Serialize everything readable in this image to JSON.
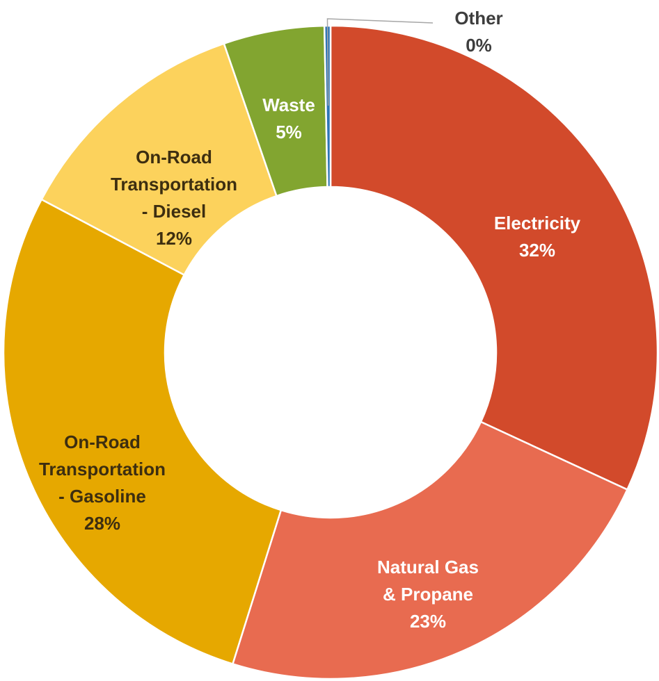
{
  "chart_data": {
    "type": "pie",
    "variant": "donut",
    "title": "",
    "legend": "none",
    "slices": [
      {
        "name": "Electricity",
        "label_lines": [
          "Electricity"
        ],
        "value": 32,
        "value_label": "32%",
        "color": "#d24a2b",
        "label_color": "#ffffff"
      },
      {
        "name": "Natural Gas & Propane",
        "label_lines": [
          "Natural Gas",
          "& Propane"
        ],
        "value": 23,
        "value_label": "23%",
        "color": "#e86b50",
        "label_color": "#ffffff"
      },
      {
        "name": "On-Road Transportation - Gasoline",
        "label_lines": [
          "On-Road",
          "Transportation",
          "- Gasoline"
        ],
        "value": 28,
        "value_label": "28%",
        "color": "#e6a800",
        "label_color": "#3d2e10"
      },
      {
        "name": "On-Road Transportation - Diesel",
        "label_lines": [
          "On-Road",
          "Transportation",
          "- Diesel"
        ],
        "value": 12,
        "value_label": "12%",
        "color": "#fcd25c",
        "label_color": "#3d2e10"
      },
      {
        "name": "Waste",
        "label_lines": [
          "Waste"
        ],
        "value": 5,
        "value_label": "5%",
        "color": "#82a530",
        "label_color": "#ffffff"
      },
      {
        "name": "Other",
        "label_lines": [
          "Other"
        ],
        "value": 0.3,
        "value_label": "0%",
        "color": "#2e75b6",
        "label_color": "#3d3d3d"
      }
    ]
  }
}
